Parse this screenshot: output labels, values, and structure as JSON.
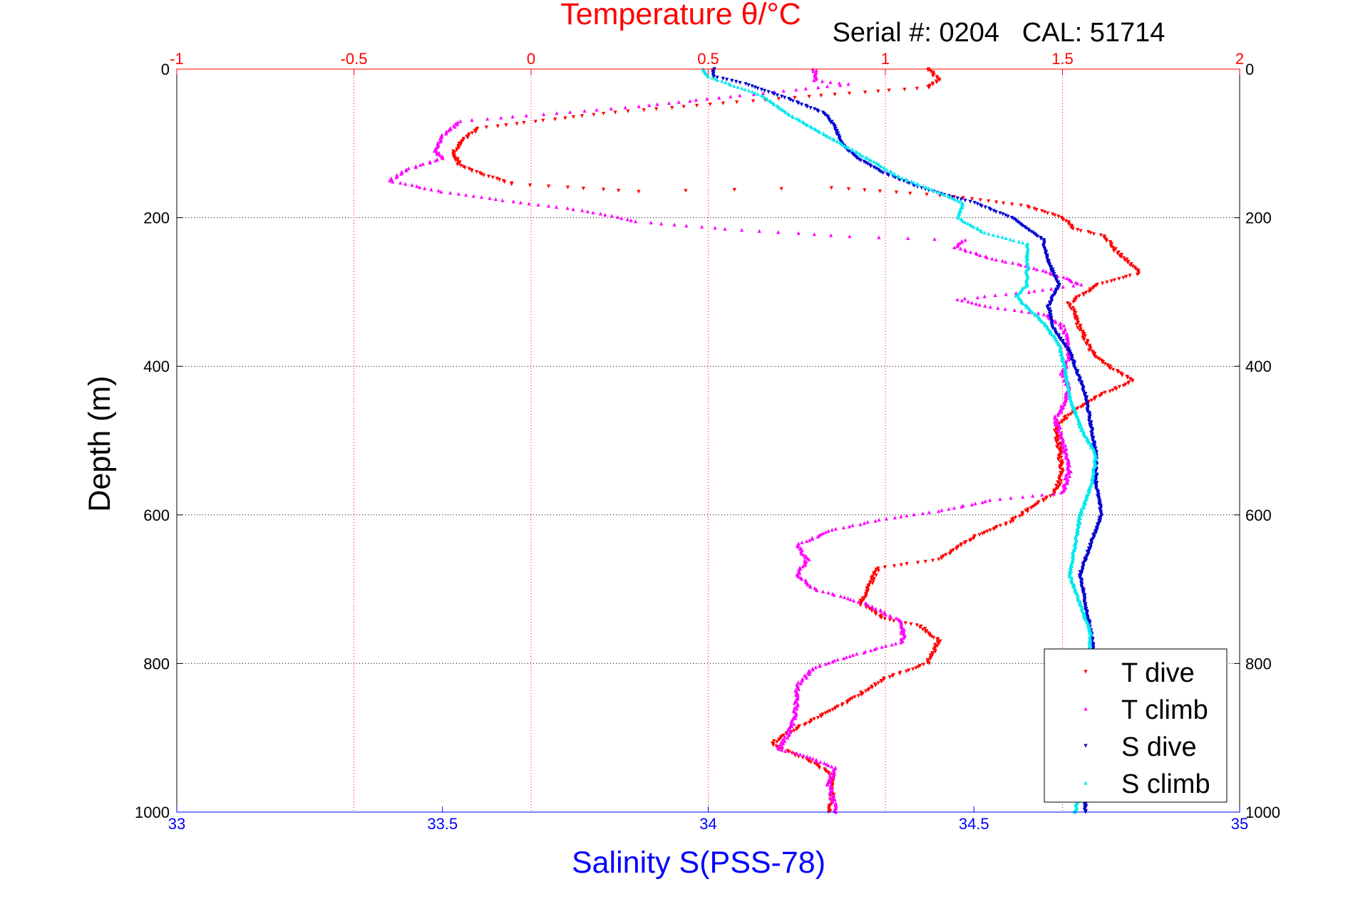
{
  "chart_data": {
    "type": "scatter",
    "title": "Temperature θ/°C",
    "subtitle": "Serial #: 0204   CAL: 51714",
    "ylabel": "Depth (m)",
    "xlabel": "Salinity S(PSS-78)",
    "x2label": "Temperature θ/°C",
    "ylim": [
      1000,
      0
    ],
    "xlim_salinity": [
      33,
      35
    ],
    "xlim_temperature": [
      -1,
      2
    ],
    "yticks": [
      "0",
      "200",
      "400",
      "600",
      "800",
      "1000"
    ],
    "xticks_salinity": [
      "33",
      "33.5",
      "34",
      "34.5",
      "35"
    ],
    "xticks_temperature": [
      "-1",
      "-0.5",
      "0",
      "0.5",
      "1",
      "1.5",
      "2"
    ],
    "grid": true,
    "legend_position": "bottom-right",
    "colors": {
      "t_dive": "#ff0000",
      "t_climb": "#ff00ff",
      "s_dive": "#0000d0",
      "s_climb": "#00e8ee",
      "salinity_axis": "#0000ff",
      "temperature_axis": "#ff0000",
      "grid": "#000000"
    },
    "series": [
      {
        "name": "T dive",
        "axis": "temperature",
        "color": "#ff0000",
        "marker": "triangle-down",
        "points": [
          [
            1.12,
            0
          ],
          [
            1.15,
            15
          ],
          [
            1.12,
            25
          ],
          [
            0.98,
            30
          ],
          [
            0.7,
            40
          ],
          [
            0.2,
            60
          ],
          [
            -0.15,
            80
          ],
          [
            -0.2,
            100
          ],
          [
            -0.22,
            115
          ],
          [
            -0.2,
            130
          ],
          [
            -0.15,
            140
          ],
          [
            -0.05,
            155
          ],
          [
            0.3,
            165
          ],
          [
            0.85,
            160
          ],
          [
            1.2,
            172
          ],
          [
            1.4,
            185
          ],
          [
            1.5,
            200
          ],
          [
            1.53,
            215
          ],
          [
            1.62,
            225
          ],
          [
            1.65,
            245
          ],
          [
            1.72,
            275
          ],
          [
            1.6,
            290
          ],
          [
            1.52,
            315
          ],
          [
            1.55,
            350
          ],
          [
            1.58,
            380
          ],
          [
            1.63,
            400
          ],
          [
            1.7,
            420
          ],
          [
            1.6,
            440
          ],
          [
            1.55,
            455
          ],
          [
            1.48,
            480
          ],
          [
            1.49,
            510
          ],
          [
            1.5,
            545
          ],
          [
            1.48,
            570
          ],
          [
            1.35,
            610
          ],
          [
            1.25,
            630
          ],
          [
            1.15,
            660
          ],
          [
            0.98,
            672
          ],
          [
            0.95,
            700
          ],
          [
            0.93,
            720
          ],
          [
            1.0,
            740
          ],
          [
            1.1,
            750
          ],
          [
            1.15,
            770
          ],
          [
            1.12,
            800
          ],
          [
            1.0,
            820
          ],
          [
            0.9,
            850
          ],
          [
            0.82,
            870
          ],
          [
            0.7,
            900
          ],
          [
            0.68,
            910
          ],
          [
            0.78,
            930
          ],
          [
            0.85,
            950
          ],
          [
            0.85,
            980
          ],
          [
            0.84,
            1000
          ]
        ]
      },
      {
        "name": "T climb",
        "axis": "temperature",
        "color": "#ff00ff",
        "marker": "triangle-up",
        "points": [
          [
            0.8,
            0
          ],
          [
            0.8,
            15
          ],
          [
            0.9,
            20
          ],
          [
            0.5,
            40
          ],
          [
            0.3,
            50
          ],
          [
            -0.2,
            70
          ],
          [
            -0.25,
            90
          ],
          [
            -0.27,
            110
          ],
          [
            -0.25,
            120
          ],
          [
            -0.35,
            135
          ],
          [
            -0.4,
            150
          ],
          [
            -0.25,
            165
          ],
          [
            -0.1,
            175
          ],
          [
            0.15,
            190
          ],
          [
            0.3,
            205
          ],
          [
            0.55,
            215
          ],
          [
            0.9,
            225
          ],
          [
            1.22,
            230
          ],
          [
            1.2,
            240
          ],
          [
            1.3,
            255
          ],
          [
            1.4,
            265
          ],
          [
            1.5,
            280
          ],
          [
            1.55,
            290
          ],
          [
            1.4,
            300
          ],
          [
            1.2,
            310
          ],
          [
            1.3,
            320
          ],
          [
            1.45,
            330
          ],
          [
            1.5,
            345
          ],
          [
            1.52,
            380
          ],
          [
            1.5,
            410
          ],
          [
            1.52,
            430
          ],
          [
            1.5,
            455
          ],
          [
            1.48,
            470
          ],
          [
            1.5,
            500
          ],
          [
            1.52,
            540
          ],
          [
            1.5,
            570
          ],
          [
            1.3,
            580
          ],
          [
            1.15,
            595
          ],
          [
            1.0,
            605
          ],
          [
            0.85,
            620
          ],
          [
            0.75,
            640
          ],
          [
            0.78,
            660
          ],
          [
            0.75,
            680
          ],
          [
            0.8,
            700
          ],
          [
            0.95,
            720
          ],
          [
            1.05,
            745
          ],
          [
            1.05,
            770
          ],
          [
            0.9,
            790
          ],
          [
            0.8,
            805
          ],
          [
            0.75,
            830
          ],
          [
            0.75,
            850
          ],
          [
            0.74,
            880
          ],
          [
            0.72,
            900
          ],
          [
            0.7,
            915
          ],
          [
            0.78,
            925
          ],
          [
            0.86,
            940
          ],
          [
            0.84,
            960
          ],
          [
            0.85,
            980
          ],
          [
            0.86,
            1000
          ]
        ]
      },
      {
        "name": "S dive",
        "axis": "salinity",
        "color": "#0000d0",
        "marker": "triangle-down",
        "points": [
          [
            34.01,
            0
          ],
          [
            34.01,
            10
          ],
          [
            34.07,
            20
          ],
          [
            34.15,
            40
          ],
          [
            34.22,
            60
          ],
          [
            34.24,
            80
          ],
          [
            34.25,
            100
          ],
          [
            34.28,
            120
          ],
          [
            34.33,
            140
          ],
          [
            34.4,
            160
          ],
          [
            34.5,
            180
          ],
          [
            34.57,
            200
          ],
          [
            34.63,
            230
          ],
          [
            34.64,
            260
          ],
          [
            34.66,
            290
          ],
          [
            34.64,
            320
          ],
          [
            34.65,
            350
          ],
          [
            34.68,
            380
          ],
          [
            34.69,
            400
          ],
          [
            34.71,
            440
          ],
          [
            34.72,
            480
          ],
          [
            34.73,
            520
          ],
          [
            34.73,
            560
          ],
          [
            34.74,
            600
          ],
          [
            34.72,
            640
          ],
          [
            34.7,
            680
          ],
          [
            34.71,
            720
          ],
          [
            34.72,
            760
          ],
          [
            34.73,
            800
          ],
          [
            34.72,
            840
          ],
          [
            34.71,
            880
          ],
          [
            34.71,
            920
          ],
          [
            34.71,
            960
          ],
          [
            34.71,
            1000
          ]
        ]
      },
      {
        "name": "S climb",
        "axis": "salinity",
        "color": "#00e8ee",
        "marker": "triangle-up",
        "points": [
          [
            33.99,
            0
          ],
          [
            34.0,
            10
          ],
          [
            34.1,
            35
          ],
          [
            34.15,
            60
          ],
          [
            34.2,
            80
          ],
          [
            34.25,
            100
          ],
          [
            34.3,
            120
          ],
          [
            34.36,
            145
          ],
          [
            34.43,
            165
          ],
          [
            34.48,
            180
          ],
          [
            34.47,
            200
          ],
          [
            34.52,
            220
          ],
          [
            34.6,
            235
          ],
          [
            34.6,
            260
          ],
          [
            34.6,
            290
          ],
          [
            34.58,
            305
          ],
          [
            34.6,
            320
          ],
          [
            34.63,
            340
          ],
          [
            34.66,
            370
          ],
          [
            34.67,
            400
          ],
          [
            34.68,
            440
          ],
          [
            34.7,
            480
          ],
          [
            34.73,
            520
          ],
          [
            34.72,
            560
          ],
          [
            34.7,
            600
          ],
          [
            34.69,
            640
          ],
          [
            34.68,
            680
          ],
          [
            34.7,
            720
          ],
          [
            34.72,
            760
          ],
          [
            34.71,
            800
          ],
          [
            34.71,
            840
          ],
          [
            34.7,
            880
          ],
          [
            34.7,
            920
          ],
          [
            34.7,
            960
          ],
          [
            34.69,
            1000
          ]
        ]
      }
    ]
  }
}
